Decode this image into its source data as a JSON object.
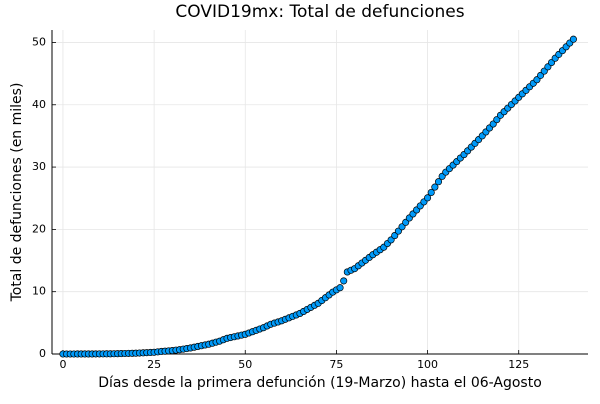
{
  "chart_data": {
    "type": "scatter",
    "title": "COVID19mx: Total de defunciones",
    "x_label": "Días desde la primera defunción (19-Marzo) hasta el 06-Agosto",
    "y_label": "Total de defunciones (en miles)",
    "color": "#009af9",
    "grid": true,
    "xlim": [
      -3,
      144
    ],
    "ylim": [
      0,
      52
    ],
    "xticks": [
      0,
      25,
      50,
      75,
      100,
      125
    ],
    "yticks": [
      0,
      10,
      20,
      30,
      40,
      50
    ],
    "x": [
      0,
      1,
      2,
      3,
      4,
      5,
      6,
      7,
      8,
      9,
      10,
      11,
      12,
      13,
      14,
      15,
      16,
      17,
      18,
      19,
      20,
      21,
      22,
      23,
      24,
      25,
      26,
      27,
      28,
      29,
      30,
      31,
      32,
      33,
      34,
      35,
      36,
      37,
      38,
      39,
      40,
      41,
      42,
      43,
      44,
      45,
      46,
      47,
      48,
      49,
      50,
      51,
      52,
      53,
      54,
      55,
      56,
      57,
      58,
      59,
      60,
      61,
      62,
      63,
      64,
      65,
      66,
      67,
      68,
      69,
      70,
      71,
      72,
      73,
      74,
      75,
      76,
      77,
      78,
      79,
      80,
      81,
      82,
      83,
      84,
      85,
      86,
      87,
      88,
      89,
      90,
      91,
      92,
      93,
      94,
      95,
      96,
      97,
      98,
      99,
      100,
      101,
      102,
      103,
      104,
      105,
      106,
      107,
      108,
      109,
      110,
      111,
      112,
      113,
      114,
      115,
      116,
      117,
      118,
      119,
      120,
      121,
      122,
      123,
      124,
      125,
      126,
      127,
      128,
      129,
      130,
      131,
      132,
      133,
      134,
      135,
      136,
      137,
      138,
      139,
      140
    ],
    "values": [
      0.001,
      0.001,
      0.002,
      0.002,
      0.003,
      0.003,
      0.005,
      0.008,
      0.01,
      0.013,
      0.016,
      0.02,
      0.024,
      0.028,
      0.039,
      0.05,
      0.065,
      0.08,
      0.095,
      0.11,
      0.125,
      0.155,
      0.184,
      0.214,
      0.243,
      0.273,
      0.34,
      0.406,
      0.453,
      0.499,
      0.546,
      0.616,
      0.686,
      0.781,
      0.875,
      0.97,
      1.09,
      1.21,
      1.33,
      1.45,
      1.57,
      1.73,
      1.9,
      2.06,
      2.29,
      2.51,
      2.64,
      2.77,
      2.9,
      3.03,
      3.16,
      3.37,
      3.58,
      3.8,
      4.01,
      4.22,
      4.5,
      4.77,
      4.96,
      5.14,
      5.33,
      5.57,
      5.8,
      6.04,
      6.27,
      6.51,
      6.83,
      7.16,
      7.48,
      7.81,
      8.13,
      8.58,
      9.03,
      9.48,
      9.93,
      10.29,
      10.64,
      11.73,
      13.17,
      13.44,
      13.7,
      14.15,
      14.6,
      15.04,
      15.49,
      15.94,
      16.34,
      16.74,
      17.14,
      17.73,
      18.31,
      19.01,
      19.72,
      20.42,
      21.13,
      21.83,
      22.48,
      23.12,
      23.77,
      24.41,
      25.06,
      25.92,
      26.79,
      27.65,
      28.51,
      29.19,
      29.75,
      30.32,
      30.88,
      31.45,
      32.01,
      32.61,
      33.21,
      33.81,
      34.41,
      35.01,
      35.64,
      36.28,
      36.91,
      37.61,
      38.31,
      38.89,
      39.46,
      40.04,
      40.61,
      41.19,
      41.76,
      42.32,
      42.89,
      43.45,
      44.02,
      44.71,
      45.4,
      46.09,
      46.78,
      47.47,
      48.08,
      48.69,
      49.3,
      49.91,
      50.52
    ]
  }
}
